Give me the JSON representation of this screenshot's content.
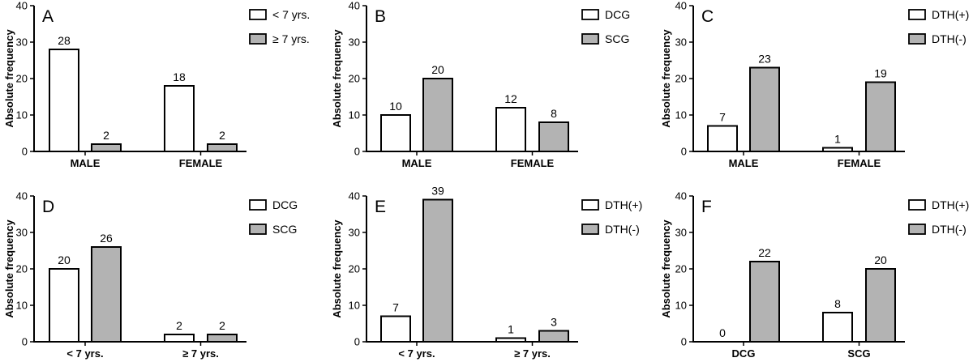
{
  "colors": {
    "series_1": "#ffffff",
    "series_2": "#b3b3b3",
    "stroke": "#000000"
  },
  "chart_data": [
    {
      "panel": "A",
      "type": "bar",
      "ylabel": "Absolute frequency",
      "ylim": [
        0,
        40
      ],
      "yticks": [
        "0",
        "10",
        "20",
        "30",
        "40"
      ],
      "categories": [
        "MALE",
        "FEMALE"
      ],
      "series": [
        {
          "name": "< 7 yrs.",
          "values": [
            28,
            18
          ],
          "labels": [
            "28",
            "18"
          ]
        },
        {
          "name": "≥ 7 yrs.",
          "values": [
            2,
            2
          ],
          "labels": [
            "2",
            "2"
          ]
        }
      ]
    },
    {
      "panel": "B",
      "type": "bar",
      "ylabel": "Absolute frequency",
      "ylim": [
        0,
        40
      ],
      "yticks": [
        "0",
        "10",
        "20",
        "30",
        "40"
      ],
      "categories": [
        "MALE",
        "FEMALE"
      ],
      "series": [
        {
          "name": "DCG",
          "values": [
            10,
            12
          ],
          "labels": [
            "10",
            "12"
          ]
        },
        {
          "name": "SCG",
          "values": [
            20,
            8
          ],
          "labels": [
            "20",
            "8"
          ]
        }
      ]
    },
    {
      "panel": "C",
      "type": "bar",
      "ylabel": "Absolute frequency",
      "ylim": [
        0,
        40
      ],
      "yticks": [
        "0",
        "10",
        "20",
        "30",
        "40"
      ],
      "categories": [
        "MALE",
        "FEMALE"
      ],
      "series": [
        {
          "name": "DTH(+)",
          "values": [
            7,
            1
          ],
          "labels": [
            "7",
            "1"
          ]
        },
        {
          "name": "DTH(-)",
          "values": [
            23,
            19
          ],
          "labels": [
            "23",
            "19"
          ]
        }
      ]
    },
    {
      "panel": "D",
      "type": "bar",
      "ylabel": "Absolute frequency",
      "ylim": [
        0,
        40
      ],
      "yticks": [
        "0",
        "10",
        "20",
        "30",
        "40"
      ],
      "categories": [
        "< 7 yrs.",
        "≥ 7 yrs."
      ],
      "series": [
        {
          "name": "DCG",
          "values": [
            20,
            2
          ],
          "labels": [
            "20",
            "2"
          ]
        },
        {
          "name": "SCG",
          "values": [
            26,
            2
          ],
          "labels": [
            "26",
            "2"
          ]
        }
      ]
    },
    {
      "panel": "E",
      "type": "bar",
      "ylabel": "Absolute frequency",
      "ylim": [
        0,
        40
      ],
      "yticks": [
        "0",
        "10",
        "20",
        "30",
        "40"
      ],
      "categories": [
        "< 7 yrs.",
        "≥ 7 yrs."
      ],
      "series": [
        {
          "name": "DTH(+)",
          "values": [
            7,
            1
          ],
          "labels": [
            "7",
            "1"
          ]
        },
        {
          "name": "DTH(-)",
          "values": [
            39,
            3
          ],
          "labels": [
            "39",
            "3"
          ]
        }
      ]
    },
    {
      "panel": "F",
      "type": "bar",
      "ylabel": "Absolute frequency",
      "ylim": [
        0,
        40
      ],
      "yticks": [
        "0",
        "10",
        "20",
        "30",
        "40"
      ],
      "categories": [
        "DCG",
        "SCG"
      ],
      "series": [
        {
          "name": "DTH(+)",
          "values": [
            0,
            8
          ],
          "labels": [
            "0",
            "8"
          ]
        },
        {
          "name": "DTH(-)",
          "values": [
            22,
            20
          ],
          "labels": [
            "22",
            "20"
          ]
        }
      ]
    }
  ]
}
